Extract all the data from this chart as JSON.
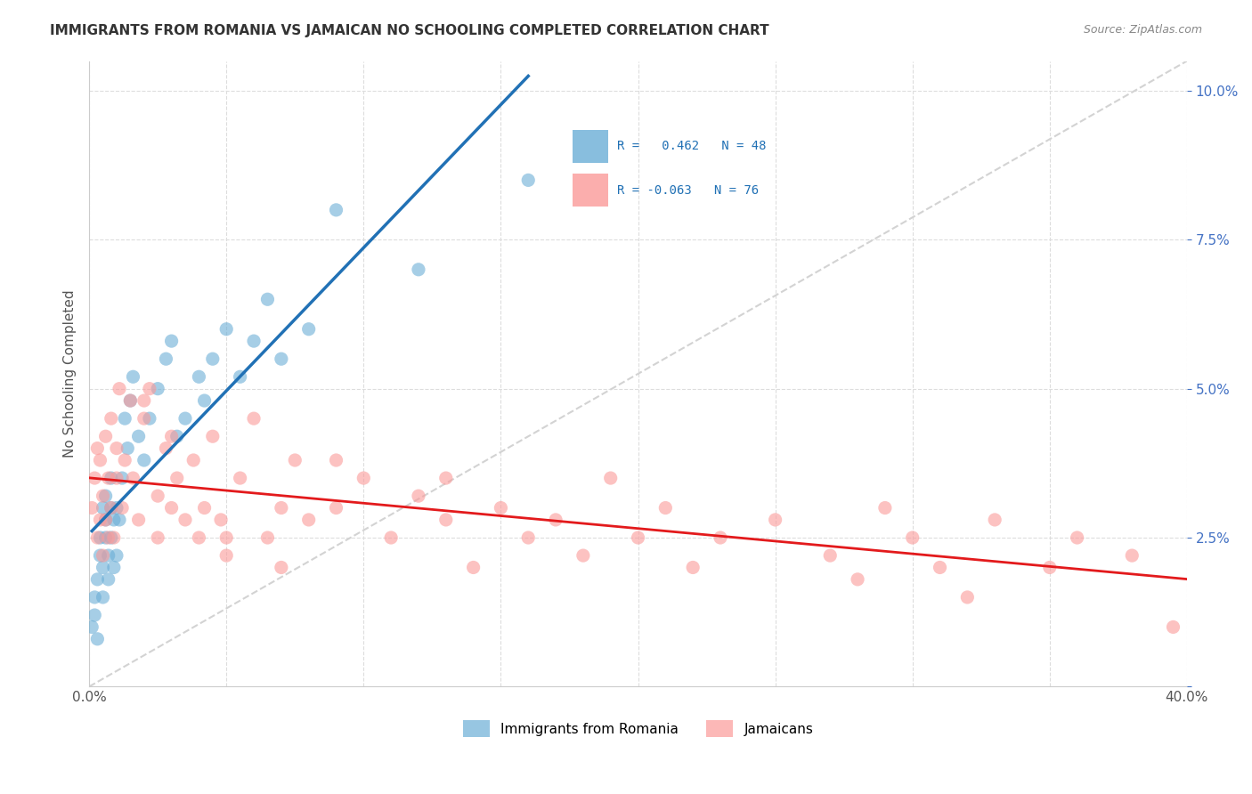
{
  "title": "IMMIGRANTS FROM ROMANIA VS JAMAICAN NO SCHOOLING COMPLETED CORRELATION CHART",
  "source": "Source: ZipAtlas.com",
  "xlabel": "",
  "ylabel": "No Schooling Completed",
  "xlim": [
    0.0,
    0.4
  ],
  "ylim": [
    0.0,
    0.105
  ],
  "xticks": [
    0.0,
    0.05,
    0.1,
    0.15,
    0.2,
    0.25,
    0.3,
    0.35,
    0.4
  ],
  "xticklabels": [
    "0.0%",
    "",
    "",
    "",
    "",
    "",
    "",
    "",
    "40.0%"
  ],
  "yticks": [
    0.0,
    0.025,
    0.05,
    0.075,
    0.1
  ],
  "yticklabels": [
    "",
    "2.5%",
    "5.0%",
    "7.5%",
    "10.0%"
  ],
  "legend_R1": "0.462",
  "legend_N1": "48",
  "legend_R2": "-0.063",
  "legend_N2": "76",
  "blue_color": "#6baed6",
  "pink_color": "#fb9a99",
  "blue_line_color": "#2171b5",
  "pink_line_color": "#e31a1c",
  "romania_x": [
    0.001,
    0.002,
    0.002,
    0.003,
    0.003,
    0.004,
    0.004,
    0.005,
    0.005,
    0.005,
    0.006,
    0.006,
    0.006,
    0.007,
    0.007,
    0.008,
    0.008,
    0.008,
    0.009,
    0.009,
    0.01,
    0.01,
    0.011,
    0.012,
    0.013,
    0.014,
    0.015,
    0.016,
    0.018,
    0.02,
    0.022,
    0.025,
    0.028,
    0.03,
    0.032,
    0.035,
    0.04,
    0.042,
    0.045,
    0.05,
    0.055,
    0.06,
    0.065,
    0.07,
    0.08,
    0.09,
    0.12,
    0.16
  ],
  "romania_y": [
    0.01,
    0.012,
    0.015,
    0.008,
    0.018,
    0.022,
    0.025,
    0.02,
    0.03,
    0.015,
    0.025,
    0.028,
    0.032,
    0.018,
    0.022,
    0.025,
    0.03,
    0.035,
    0.02,
    0.028,
    0.022,
    0.03,
    0.028,
    0.035,
    0.045,
    0.04,
    0.048,
    0.052,
    0.042,
    0.038,
    0.045,
    0.05,
    0.055,
    0.058,
    0.042,
    0.045,
    0.052,
    0.048,
    0.055,
    0.06,
    0.052,
    0.058,
    0.065,
    0.055,
    0.06,
    0.08,
    0.07,
    0.085
  ],
  "jamaica_x": [
    0.001,
    0.002,
    0.003,
    0.003,
    0.004,
    0.004,
    0.005,
    0.005,
    0.006,
    0.006,
    0.007,
    0.007,
    0.008,
    0.008,
    0.009,
    0.01,
    0.01,
    0.011,
    0.012,
    0.013,
    0.015,
    0.016,
    0.018,
    0.02,
    0.022,
    0.025,
    0.025,
    0.028,
    0.03,
    0.032,
    0.035,
    0.038,
    0.04,
    0.042,
    0.045,
    0.048,
    0.05,
    0.055,
    0.06,
    0.065,
    0.07,
    0.075,
    0.08,
    0.09,
    0.1,
    0.11,
    0.12,
    0.13,
    0.14,
    0.15,
    0.16,
    0.17,
    0.18,
    0.19,
    0.2,
    0.21,
    0.22,
    0.23,
    0.25,
    0.27,
    0.28,
    0.29,
    0.3,
    0.31,
    0.32,
    0.33,
    0.35,
    0.36,
    0.38,
    0.395,
    0.02,
    0.03,
    0.05,
    0.07,
    0.09,
    0.13
  ],
  "jamaica_y": [
    0.03,
    0.035,
    0.025,
    0.04,
    0.028,
    0.038,
    0.022,
    0.032,
    0.028,
    0.042,
    0.025,
    0.035,
    0.03,
    0.045,
    0.025,
    0.035,
    0.04,
    0.05,
    0.03,
    0.038,
    0.048,
    0.035,
    0.028,
    0.045,
    0.05,
    0.032,
    0.025,
    0.04,
    0.03,
    0.035,
    0.028,
    0.038,
    0.025,
    0.03,
    0.042,
    0.028,
    0.022,
    0.035,
    0.045,
    0.025,
    0.03,
    0.038,
    0.028,
    0.03,
    0.035,
    0.025,
    0.032,
    0.028,
    0.02,
    0.03,
    0.025,
    0.028,
    0.022,
    0.035,
    0.025,
    0.03,
    0.02,
    0.025,
    0.028,
    0.022,
    0.018,
    0.03,
    0.025,
    0.02,
    0.015,
    0.028,
    0.02,
    0.025,
    0.022,
    0.01,
    0.048,
    0.042,
    0.025,
    0.02,
    0.038,
    0.035
  ]
}
